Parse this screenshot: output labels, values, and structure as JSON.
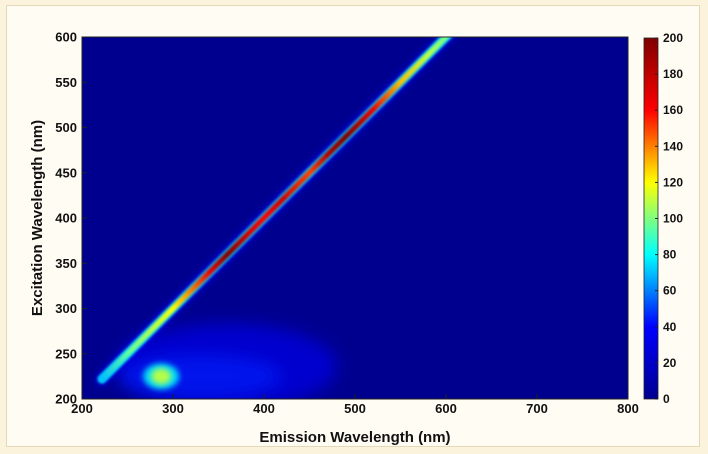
{
  "chart_data": {
    "type": "heatmap",
    "title": "",
    "xlabel": "Emission Wavelength (nm)",
    "ylabel": "Excitation Wavelength (nm)",
    "xlim": [
      200,
      800
    ],
    "ylim": [
      200,
      600
    ],
    "xticks": [
      "200",
      "300",
      "400",
      "500",
      "600",
      "700",
      "800"
    ],
    "yticks": [
      "200",
      "250",
      "300",
      "350",
      "400",
      "450",
      "500",
      "550",
      "600"
    ],
    "colorbar": {
      "min": 0,
      "max": 200,
      "ticks": [
        "0",
        "20",
        "40",
        "60",
        "80",
        "100",
        "120",
        "140",
        "160",
        "180",
        "200"
      ],
      "colormap": "jet"
    },
    "background_value": 0,
    "features": [
      {
        "name": "Rayleigh scatter line (emission = excitation)",
        "x": [
          222,
          250,
          300,
          340,
          360,
          380,
          400,
          420,
          450,
          470,
          490,
          520,
          550,
          580,
          605
        ],
        "y": [
          222,
          250,
          300,
          340,
          360,
          380,
          400,
          420,
          450,
          470,
          490,
          520,
          550,
          580,
          605
        ],
        "intensity": [
          70,
          95,
          120,
          165,
          200,
          175,
          160,
          175,
          150,
          185,
          200,
          165,
          130,
          110,
          95
        ]
      },
      {
        "name": "fluorescence peak",
        "x": 287,
        "y": 225,
        "intensity": 110
      },
      {
        "name": "broad fluorescence region",
        "x_range": [
          240,
          480
        ],
        "y_range": [
          205,
          300
        ],
        "intensity": 30
      }
    ],
    "colors": {
      "background": "#00008f",
      "jet_stops": [
        "#00008f",
        "#0000ff",
        "#00ffff",
        "#ffff00",
        "#ff0000",
        "#800000"
      ]
    }
  }
}
